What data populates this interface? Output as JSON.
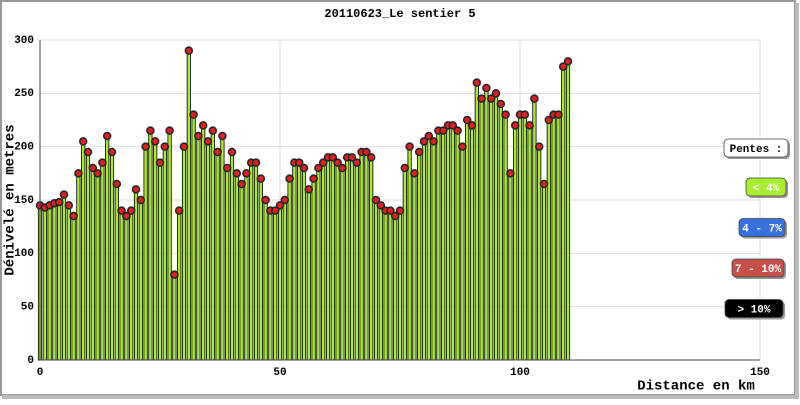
{
  "chart_data": {
    "type": "profile",
    "title": "20110623_Le sentier 5",
    "x_label": "Distance en km",
    "y_label": "Dénivelé en metres",
    "x": [
      0,
      1,
      2,
      3,
      4,
      5,
      6,
      7,
      8,
      9,
      10,
      11,
      12,
      13,
      14,
      15,
      16,
      17,
      18,
      19,
      20,
      21,
      22,
      23,
      24,
      25,
      26,
      27,
      28,
      29,
      30,
      31,
      32,
      33,
      34,
      35,
      36,
      37,
      38,
      39,
      40,
      41,
      42,
      43,
      44,
      45,
      46,
      47,
      48,
      49,
      50,
      51,
      52,
      53,
      54,
      55,
      56,
      57,
      58,
      59,
      60,
      61,
      62,
      63,
      64,
      65,
      66,
      67,
      68,
      69,
      70,
      71,
      72,
      73,
      74,
      75,
      76,
      77,
      78,
      79,
      80,
      81,
      82,
      83,
      84,
      85,
      86,
      87,
      88,
      89,
      90,
      91,
      92,
      93,
      94,
      95,
      96,
      97,
      98,
      99,
      100,
      101,
      102,
      103,
      104,
      105,
      106,
      107,
      108,
      109,
      110
    ],
    "values": [
      145,
      143,
      145,
      147,
      148,
      155,
      145,
      135,
      175,
      205,
      195,
      180,
      175,
      185,
      210,
      195,
      165,
      140,
      135,
      140,
      160,
      150,
      200,
      215,
      205,
      185,
      200,
      215,
      80,
      140,
      200,
      290,
      230,
      210,
      220,
      205,
      215,
      195,
      210,
      180,
      195,
      175,
      165,
      175,
      185,
      185,
      170,
      150,
      140,
      140,
      145,
      150,
      170,
      185,
      185,
      180,
      160,
      170,
      180,
      185,
      190,
      190,
      185,
      180,
      190,
      190,
      185,
      195,
      195,
      190,
      150,
      145,
      140,
      140,
      135,
      140,
      180,
      200,
      175,
      195,
      205,
      210,
      205,
      215,
      215,
      220,
      220,
      215,
      200,
      225,
      220,
      260,
      245,
      255,
      245,
      250,
      240,
      230,
      175,
      220,
      230,
      230,
      220,
      245,
      200,
      165,
      225,
      230,
      230,
      275,
      280
    ],
    "bar_color": "#a8ec32",
    "marker_color": "#e02020",
    "xlim": [
      0,
      150
    ],
    "xticks": [
      0,
      50,
      100,
      150
    ],
    "ylim": [
      0,
      300
    ],
    "yticks": [
      0,
      50,
      100,
      150,
      200,
      250,
      300
    ],
    "grid": true,
    "legend": {
      "title": "Pentes :",
      "items": [
        {
          "label": "< 4%",
          "color": "#a8ec32"
        },
        {
          "label": "4 - 7%",
          "color": "#3a6fe0"
        },
        {
          "label": "7 - 10%",
          "color": "#c8504a"
        },
        {
          "label": "> 10%",
          "color": "#000000"
        }
      ]
    }
  }
}
